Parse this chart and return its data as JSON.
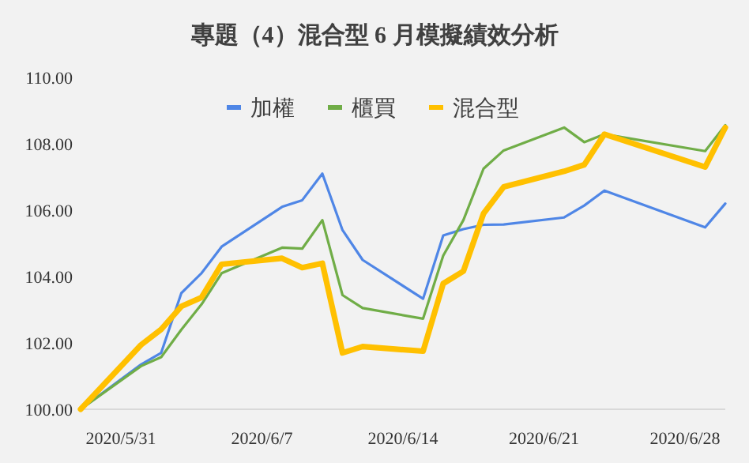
{
  "chart_data": {
    "type": "line",
    "title": "專題（4）混合型 6 月模擬績效分析",
    "x": [
      "2020-05-29",
      "2020-06-01",
      "2020-06-02",
      "2020-06-03",
      "2020-06-04",
      "2020-06-05",
      "2020-06-08",
      "2020-06-09",
      "2020-06-10",
      "2020-06-11",
      "2020-06-12",
      "2020-06-15",
      "2020-06-16",
      "2020-06-17",
      "2020-06-18",
      "2020-06-19",
      "2020-06-22",
      "2020-06-23",
      "2020-06-24",
      "2020-06-29",
      "2020-06-30"
    ],
    "series": [
      {
        "name": "加權",
        "color": "#4f86e6",
        "values": [
          100.0,
          101.35,
          101.7,
          103.5,
          104.1,
          104.9,
          106.1,
          106.3,
          107.1,
          105.4,
          104.5,
          103.33,
          105.24,
          105.43,
          105.56,
          105.57,
          105.78,
          106.14,
          106.59,
          105.48,
          106.2
        ]
      },
      {
        "name": "櫃買",
        "color": "#70ad47",
        "values": [
          100.0,
          101.3,
          101.57,
          102.4,
          103.16,
          104.1,
          104.87,
          104.84,
          105.7,
          103.44,
          103.05,
          102.73,
          104.63,
          105.7,
          107.25,
          107.8,
          108.49,
          108.05,
          108.29,
          107.78,
          108.56
        ]
      },
      {
        "name": "混合型",
        "color": "#ffc000",
        "values": [
          100.0,
          101.94,
          102.41,
          103.1,
          103.37,
          104.37,
          104.55,
          104.27,
          104.4,
          101.7,
          101.89,
          101.75,
          103.79,
          104.16,
          105.9,
          106.7,
          107.17,
          107.37,
          108.29,
          107.3,
          108.49
        ]
      }
    ],
    "xticks": [
      {
        "value": "2020-05-31",
        "label": "2020/5/31"
      },
      {
        "value": "2020-06-07",
        "label": "2020/6/7"
      },
      {
        "value": "2020-06-14",
        "label": "2020/6/14"
      },
      {
        "value": "2020-06-21",
        "label": "2020/6/21"
      },
      {
        "value": "2020-06-28",
        "label": "2020/6/28"
      }
    ],
    "xlim": [
      "2020-05-29",
      "2020-06-30"
    ],
    "ylim": [
      100,
      110
    ],
    "yticks": [
      {
        "value": 100,
        "label": "100.00"
      },
      {
        "value": 102,
        "label": "102.00"
      },
      {
        "value": 104,
        "label": "104.00"
      },
      {
        "value": 106,
        "label": "106.00"
      },
      {
        "value": 108,
        "label": "108.00"
      },
      {
        "value": 110,
        "label": "110.00"
      }
    ],
    "legend": "top"
  }
}
